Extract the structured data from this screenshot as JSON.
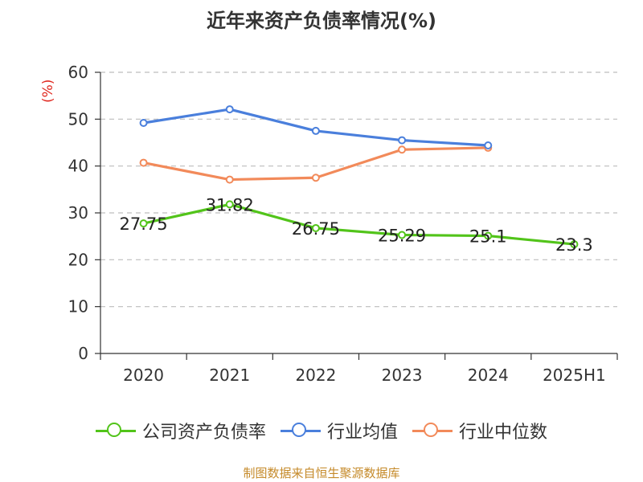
{
  "chart_data": {
    "type": "line",
    "title": "近年来资产负债率情况(%)",
    "ylabel": "(%)",
    "categories": [
      "2020",
      "2021",
      "2022",
      "2023",
      "2024",
      "2025H1"
    ],
    "ylim": [
      0,
      60
    ],
    "yticks": [
      0,
      10,
      20,
      30,
      40,
      50,
      60
    ],
    "grid": true,
    "legend_position": "bottom",
    "series": [
      {
        "name": "公司资产负债率",
        "color": "#52c41a",
        "values": [
          27.75,
          31.82,
          26.75,
          25.29,
          25.1,
          23.3
        ],
        "labels": [
          "27.75",
          "31.82",
          "26.75",
          "25.29",
          "25.1",
          "23.3"
        ]
      },
      {
        "name": "行业均值",
        "color": "#4a7fdc",
        "values": [
          49.2,
          52.1,
          47.5,
          45.5,
          44.4,
          null
        ]
      },
      {
        "name": "行业中位数",
        "color": "#f28a5a",
        "values": [
          40.7,
          37.1,
          37.5,
          43.5,
          43.9,
          null
        ]
      }
    ]
  },
  "source": "制图数据来自恒生聚源数据库"
}
